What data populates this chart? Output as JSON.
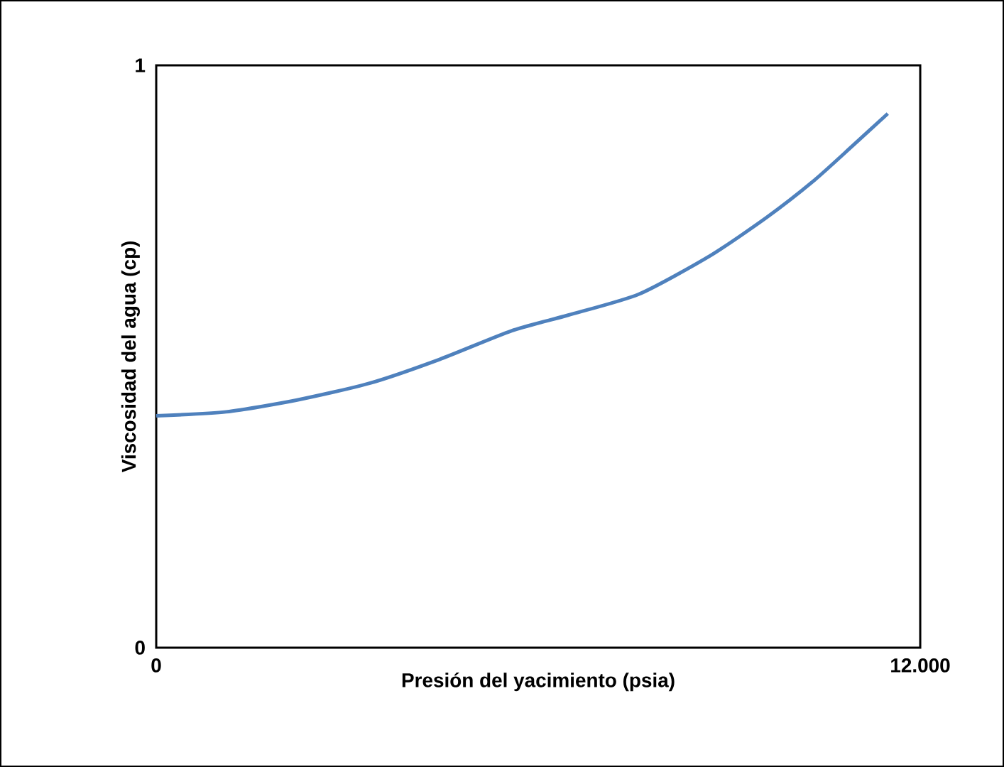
{
  "chart_data": {
    "type": "line",
    "xlabel": "Presión del yacimiento (psia)",
    "ylabel": "Viscosidad del agua (cp)",
    "x": [
      0,
      1100,
      2200,
      3350,
      4450,
      5580,
      6470,
      7580,
      8700,
      9590,
      10330,
      10930,
      11490
    ],
    "values": [
      0.398,
      0.405,
      0.425,
      0.454,
      0.495,
      0.544,
      0.571,
      0.607,
      0.673,
      0.739,
      0.802,
      0.861,
      0.917
    ],
    "color": "#4f81bd",
    "marker": "none",
    "xlim": [
      0,
      12000
    ],
    "ylim": [
      0,
      1
    ],
    "xticks": [
      0,
      {
        "value": 12000,
        "label": "12.000"
      }
    ],
    "yticks": [
      0,
      1
    ]
  }
}
